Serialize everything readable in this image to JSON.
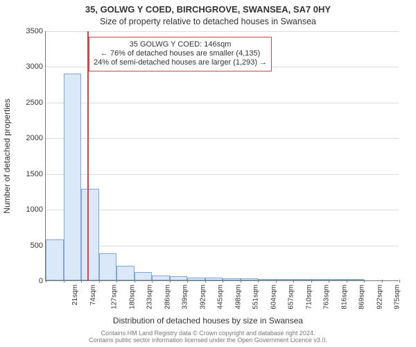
{
  "title_line1": "35, GOLWG Y COED, BIRCHGROVE, SWANSEA, SA7 0HY",
  "title_line2": "Size of property relative to detached houses in Swansea",
  "ylabel": "Number of detached properties",
  "xlabel": "Distribution of detached houses by size in Swansea",
  "footer_line1": "Contains HM Land Registry data © Crown copyright and database right 2024.",
  "footer_line2": "Contains public sector information licensed under the Open Government Licence v3.0.",
  "chart": {
    "type": "bar_histogram",
    "ylim_max": 3500,
    "ytick_step": 500,
    "xtick_start": 21,
    "xtick_step": 53,
    "xtick_count": 21,
    "xtick_suffix": "sqm",
    "bar_width_units": 53,
    "bar_fill": "#dbe8f7",
    "bar_stroke": "#7fa6d9",
    "grid_color": "#dcdcdc",
    "axis_color": "#777777",
    "marker_value": 146,
    "marker_color": "#d04545",
    "callout_border": "#d04545",
    "callout_lines": [
      "35 GOLWG Y COED: 146sqm",
      "← 76% of detached houses are smaller (4,135)",
      "24% of semi-detached houses are larger (1,293) →"
    ],
    "values": [
      570,
      2900,
      1280,
      380,
      200,
      120,
      70,
      55,
      40,
      40,
      30,
      25,
      18,
      14,
      8,
      6,
      4,
      3,
      0,
      0,
      0
    ]
  }
}
